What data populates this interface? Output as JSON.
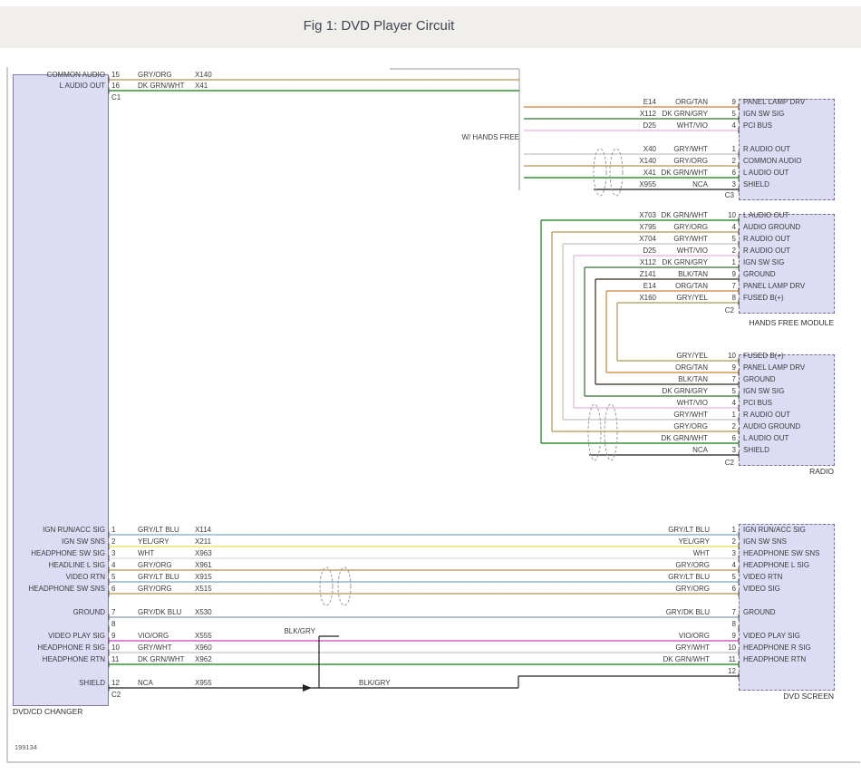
{
  "title": "Fig 1: DVD Player Circuit",
  "ref_number": "199134",
  "ui_colors": {
    "block_fill": "#dcdcf5",
    "block_border": "#7d7da8",
    "dashed_border": "#70708f",
    "frame": "#9a9a9a",
    "titlebar_bg": "#f1efeb",
    "text": "#3b3b3b"
  },
  "wire_colors": {
    "GRY/ORG": "#b59452",
    "DK GRN/WHT": "#0f7d0f",
    "ORG/TAN": "#d08030",
    "DK GRN/GRY": "#356f35",
    "WHT/VIO": "#e3b3dd",
    "GRY/WHT": "#c2c2c2",
    "NCA": "#1a1a1a",
    "GRY/YEL": "#ab9a4e",
    "BLK/TAN": "#33291a",
    "GRY/LT BLU": "#7ea3cc",
    "YEL/GRY": "#e6df52",
    "WHT": "#d9d9d9",
    "GRY/DK BLU": "#8d96a6",
    "VIO/ORG": "#c83fc8",
    "BLK/GRY": "#222222"
  },
  "dvd_cd_changer": {
    "label": "DVD/CD CHANGER",
    "connector_top_label": "C1",
    "connector_bottom_label": "C2",
    "audio_pins": [
      {
        "pin": "15",
        "name": "COMMON AUDIO",
        "wire": "GRY/ORG",
        "circuit": "X140",
        "row": 0
      },
      {
        "pin": "16",
        "name": "L AUDIO OUT",
        "wire": "DK GRN/WHT",
        "circuit": "X41",
        "row": 1
      }
    ],
    "main_pins": [
      {
        "pin": "1",
        "name": "IGN RUN/ACC SIG",
        "wire": "GRY/LT BLU",
        "circuit": "X114",
        "row": 0
      },
      {
        "pin": "2",
        "name": "IGN SW SNS",
        "wire": "YEL/GRY",
        "circuit": "X211",
        "row": 1
      },
      {
        "pin": "3",
        "name": "HEADPHONE SW SIG",
        "wire": "WHT",
        "circuit": "X963",
        "row": 2
      },
      {
        "pin": "4",
        "name": "HEADLINE L SIG",
        "wire": "GRY/ORG",
        "circuit": "X961",
        "row": 3
      },
      {
        "pin": "5",
        "name": "VIDEO RTN",
        "wire": "GRY/LT BLU",
        "circuit": "X915",
        "row": 4
      },
      {
        "pin": "6",
        "name": "HEADPHONE SW SNS",
        "wire": "GRY/ORG",
        "circuit": "X515",
        "row": 5
      },
      {
        "pin": "7",
        "name": "GROUND",
        "wire": "GRY/DK BLU",
        "circuit": "X530",
        "row": 7
      },
      {
        "pin": "8",
        "name": "",
        "wire": "",
        "circuit": "",
        "row": 8
      },
      {
        "pin": "9",
        "name": "VIDEO PLAY SIG",
        "wire": "VIO/ORG",
        "circuit": "X555",
        "row": 9
      },
      {
        "pin": "10",
        "name": "HEADPHONE R SIG",
        "wire": "GRY/WHT",
        "circuit": "X960",
        "row": 10
      },
      {
        "pin": "11",
        "name": "HEADPHONE RTN",
        "wire": "DK GRN/WHT",
        "circuit": "X962",
        "row": 11
      },
      {
        "pin": "12",
        "name": "SHIELD",
        "wire": "NCA",
        "circuit": "X955",
        "row": 13
      }
    ]
  },
  "hands_free_connector": {
    "connector_label": "C3",
    "note": "W/ HANDS FREE",
    "rows": [
      {
        "circuit": "E14",
        "wire": "ORG/TAN",
        "pin": "9",
        "name": "PANEL LAMP DRV",
        "row": 0
      },
      {
        "circuit": "X112",
        "wire": "DK GRN/GRY",
        "pin": "5",
        "name": "IGN SW SIG",
        "row": 1
      },
      {
        "circuit": "D25",
        "wire": "WHT/VIO",
        "pin": "4",
        "name": "PCI BUS",
        "row": 2
      },
      {
        "circuit": "X40",
        "wire": "GRY/WHT",
        "pin": "1",
        "name": "R AUDIO OUT",
        "row": 4
      },
      {
        "circuit": "X140",
        "wire": "GRY/ORG",
        "pin": "2",
        "name": "COMMON AUDIO",
        "row": 5
      },
      {
        "circuit": "X41",
        "wire": "DK GRN/WHT",
        "pin": "6",
        "name": "L AUDIO OUT",
        "row": 6
      },
      {
        "circuit": "X955",
        "wire": "NCA",
        "pin": "3",
        "name": "SHIELD",
        "row": 7
      }
    ]
  },
  "hands_free_module": {
    "label": "HANDS FREE MODULE",
    "connector_label": "C2",
    "rows": [
      {
        "circuit": "X703",
        "wire": "DK GRN/WHT",
        "pin": "10",
        "name": "L AUDIO OUT",
        "row": 0
      },
      {
        "circuit": "X795",
        "wire": "GRY/ORG",
        "pin": "4",
        "name": "AUDIO GROUND",
        "row": 1
      },
      {
        "circuit": "X704",
        "wire": "GRY/WHT",
        "pin": "5",
        "name": "R AUDIO OUT",
        "row": 2
      },
      {
        "circuit": "D25",
        "wire": "WHT/VIO",
        "pin": "2",
        "name": "R AUDIO OUT",
        "row": 3
      },
      {
        "circuit": "X112",
        "wire": "DK GRN/GRY",
        "pin": "1",
        "name": "IGN SW SIG",
        "row": 4
      },
      {
        "circuit": "Z141",
        "wire": "BLK/TAN",
        "pin": "9",
        "name": "GROUND",
        "row": 5
      },
      {
        "circuit": "E14",
        "wire": "ORG/TAN",
        "pin": "7",
        "name": "PANEL LAMP DRV",
        "row": 6
      },
      {
        "circuit": "X160",
        "wire": "GRY/YEL",
        "pin": "8",
        "name": "FUSED B(+)",
        "row": 7
      }
    ]
  },
  "radio": {
    "label": "RADIO",
    "connector_label": "C2",
    "rows": [
      {
        "wire": "GRY/YEL",
        "pin": "10",
        "name": "FUSED B(+)",
        "row": 0
      },
      {
        "wire": "ORG/TAN",
        "pin": "9",
        "name": "PANEL LAMP DRV",
        "row": 1
      },
      {
        "wire": "BLK/TAN",
        "pin": "7",
        "name": "GROUND",
        "row": 2
      },
      {
        "wire": "DK GRN/GRY",
        "pin": "5",
        "name": "IGN SW SIG",
        "row": 3
      },
      {
        "wire": "WHT/VIO",
        "pin": "4",
        "name": "PCI BUS",
        "row": 4
      },
      {
        "wire": "GRY/WHT",
        "pin": "1",
        "name": "R AUDIO OUT",
        "row": 5
      },
      {
        "wire": "GRY/ORG",
        "pin": "2",
        "name": "AUDIO GROUND",
        "row": 6
      },
      {
        "wire": "DK GRN/WHT",
        "pin": "6",
        "name": "L AUDIO OUT",
        "row": 7
      },
      {
        "wire": "NCA",
        "pin": "3",
        "name": "SHIELD",
        "row": 8
      }
    ]
  },
  "dvd_screen": {
    "label": "DVD SCREEN",
    "rows": [
      {
        "wire": "GRY/LT BLU",
        "pin": "1",
        "name": "IGN RUN/ACC SIG",
        "row": 0
      },
      {
        "wire": "YEL/GRY",
        "pin": "2",
        "name": "IGN SW SNS",
        "row": 1
      },
      {
        "wire": "WHT",
        "pin": "3",
        "name": "HEADPHONE SW SNS",
        "row": 2
      },
      {
        "wire": "GRY/ORG",
        "pin": "4",
        "name": "HEADPHONE L SIG",
        "row": 3
      },
      {
        "wire": "GRY/LT BLU",
        "pin": "5",
        "name": "VIDEO RTN",
        "row": 4
      },
      {
        "wire": "GRY/ORG",
        "pin": "6",
        "name": "VIDEO SIG",
        "row": 5
      },
      {
        "wire": "GRY/DK BLU",
        "pin": "7",
        "name": "GROUND",
        "row": 7
      },
      {
        "wire": "",
        "pin": "8",
        "name": "",
        "row": 8
      },
      {
        "wire": "VIO/ORG",
        "pin": "9",
        "name": "VIDEO PLAY SIG",
        "row": 9
      },
      {
        "wire": "GRY/WHT",
        "pin": "10",
        "name": "HEADPHONE R SIG",
        "row": 10
      },
      {
        "wire": "DK GRN/WHT",
        "pin": "11",
        "name": "HEADPHONE RTN",
        "row": 11
      },
      {
        "wire": "",
        "pin": "12",
        "name": "",
        "row": 12
      }
    ]
  },
  "splices": {
    "drain_label": "BLK/GRY",
    "run_label": "BLK/GRY"
  }
}
